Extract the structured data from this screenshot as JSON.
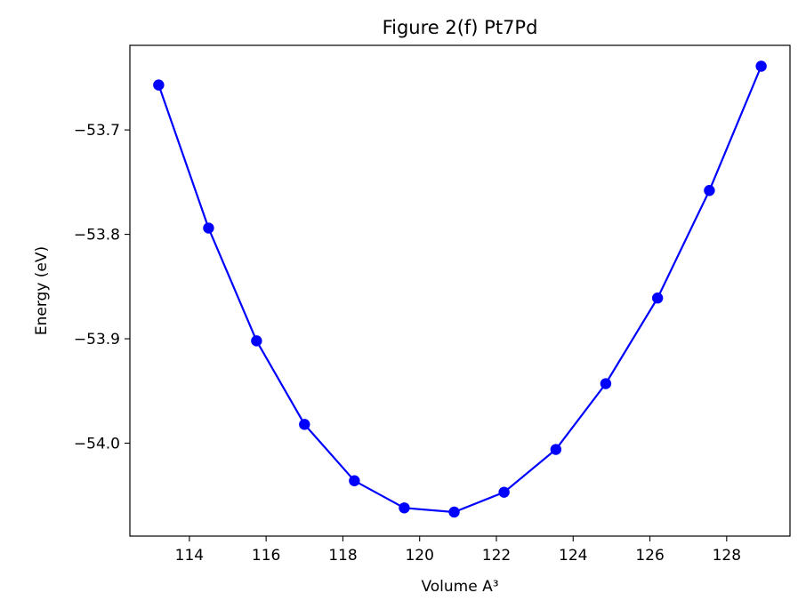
{
  "chart_data": {
    "type": "line",
    "title": "Figure 2(f) Pt7Pd",
    "xlabel": "Volume A³",
    "ylabel": "Energy (eV)",
    "xlim": [
      112.45,
      129.65
    ],
    "ylim": [
      -54.089,
      -53.619
    ],
    "x_ticks": [
      114,
      116,
      118,
      120,
      122,
      124,
      126,
      128
    ],
    "y_ticks": [
      -53.7,
      -53.8,
      -53.9,
      -54.0
    ],
    "grid": false,
    "legend": "none",
    "series": [
      {
        "color": "#0000ff",
        "marker": "circle",
        "x": [
          113.2,
          114.5,
          115.75,
          117.0,
          118.3,
          119.6,
          120.9,
          122.2,
          123.55,
          124.85,
          126.2,
          127.55,
          128.9
        ],
        "y": [
          -53.657,
          -53.794,
          -53.902,
          -53.982,
          -54.036,
          -54.062,
          -54.066,
          -54.047,
          -54.006,
          -53.943,
          -53.861,
          -53.758,
          -53.639
        ]
      }
    ]
  }
}
